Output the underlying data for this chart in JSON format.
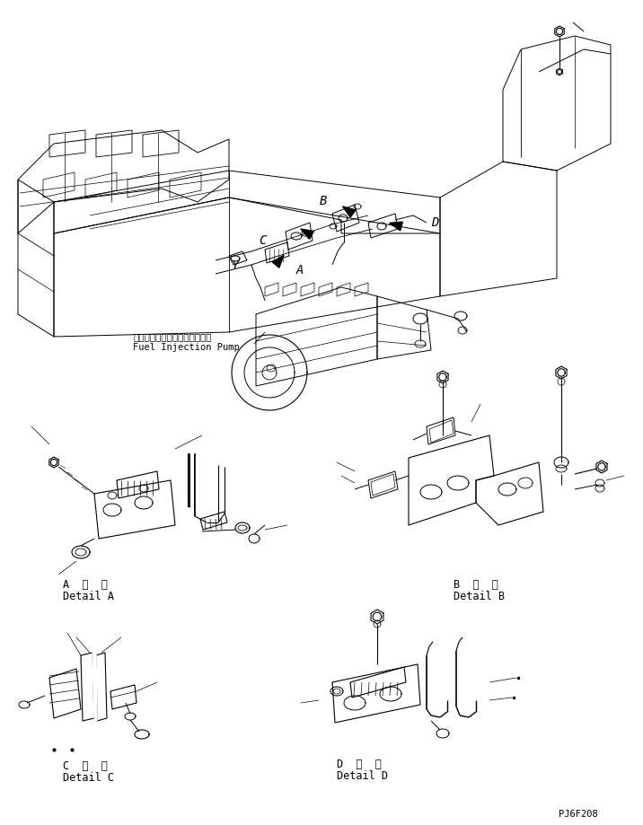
{
  "bg_color": "#ffffff",
  "line_color": "#000000",
  "fig_width": 7.16,
  "fig_height": 9.19,
  "dpi": 100,
  "labels": {
    "fuel_injection_jp": "フェルインジェクションポンプ",
    "fuel_injection_en": "Fuel Injection Pump",
    "detail_a_jp": "A  詳  細",
    "detail_a_en": "Detail A",
    "detail_b_jp": "B  詳  細",
    "detail_b_en": "Detail B",
    "detail_c_jp": "C  詳  細",
    "detail_c_en": "Detail C",
    "detail_d_jp": "D  詳  細",
    "detail_d_en": "Detail D",
    "part_number": "PJ6F208",
    "label_A": "A",
    "label_B": "B",
    "label_C": "C",
    "label_D": "D",
    "label_Y": "Y"
  }
}
